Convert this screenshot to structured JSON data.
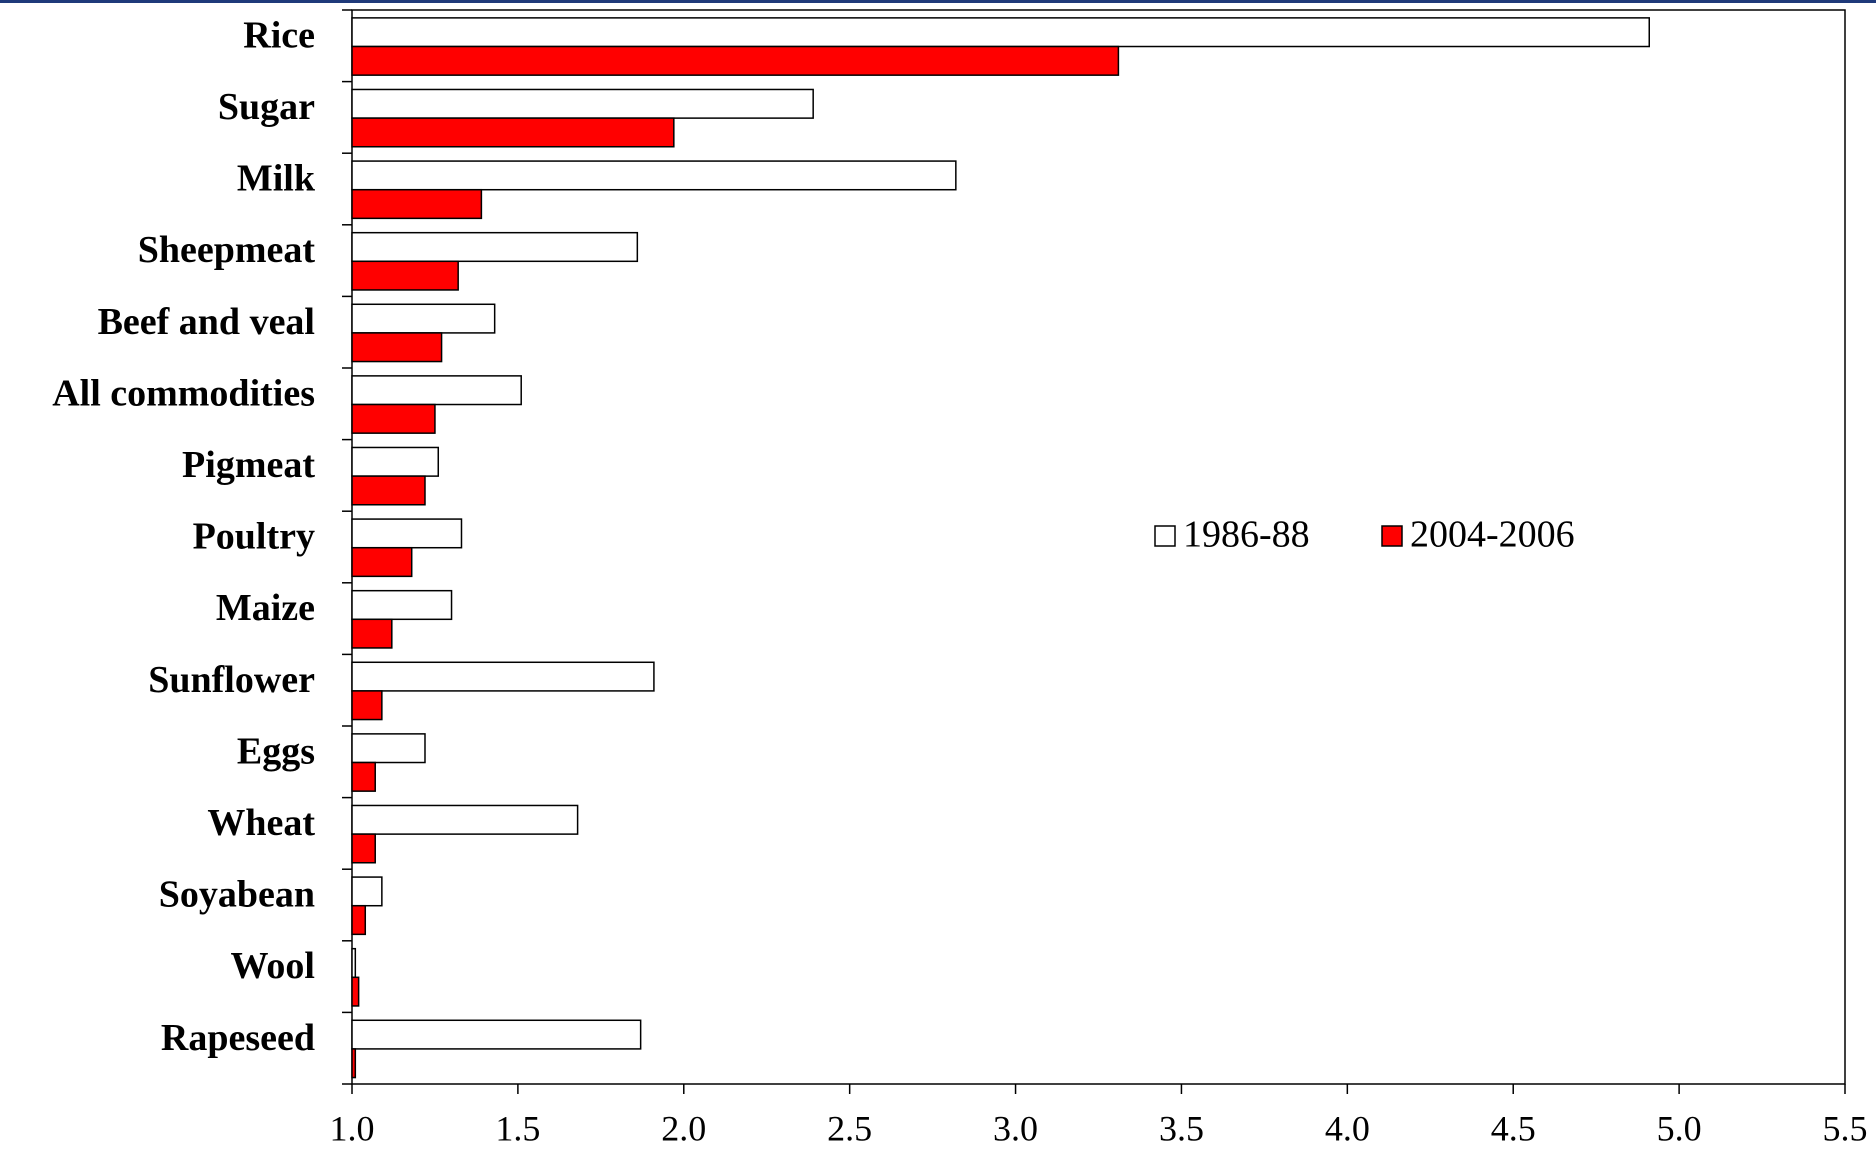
{
  "chart_data": {
    "type": "barh",
    "categories": [
      "Rice",
      "Sugar",
      "Milk",
      "Sheepmeat",
      "Beef and veal",
      "All commodities",
      "Pigmeat",
      "Poultry",
      "Maize",
      "Sunflower",
      "Eggs",
      "Wheat",
      "Soyabean",
      "Wool",
      "Rapeseed"
    ],
    "series": [
      {
        "name": "1986-88",
        "color": "#ffffff",
        "values": [
          4.91,
          2.39,
          2.82,
          1.86,
          1.43,
          1.51,
          1.26,
          1.33,
          1.3,
          1.91,
          1.22,
          1.68,
          1.09,
          1.01,
          1.87
        ]
      },
      {
        "name": "2004-2006",
        "color": "#ff0000",
        "values": [
          3.31,
          1.97,
          1.39,
          1.32,
          1.27,
          1.25,
          1.22,
          1.18,
          1.12,
          1.09,
          1.07,
          1.07,
          1.04,
          1.02,
          1.01
        ]
      }
    ],
    "xlim": [
      1.0,
      5.5
    ],
    "xticks": [
      {
        "value": 1.0,
        "label": "1.0"
      },
      1.5,
      {
        "value": 2.0,
        "label": "2.0"
      },
      2.5,
      {
        "value": 3.0,
        "label": "3.0"
      },
      3.5,
      {
        "value": 4.0,
        "label": "4.0"
      },
      4.5,
      {
        "value": 5.0,
        "label": "5.0"
      },
      5.5
    ],
    "legend": "right"
  }
}
